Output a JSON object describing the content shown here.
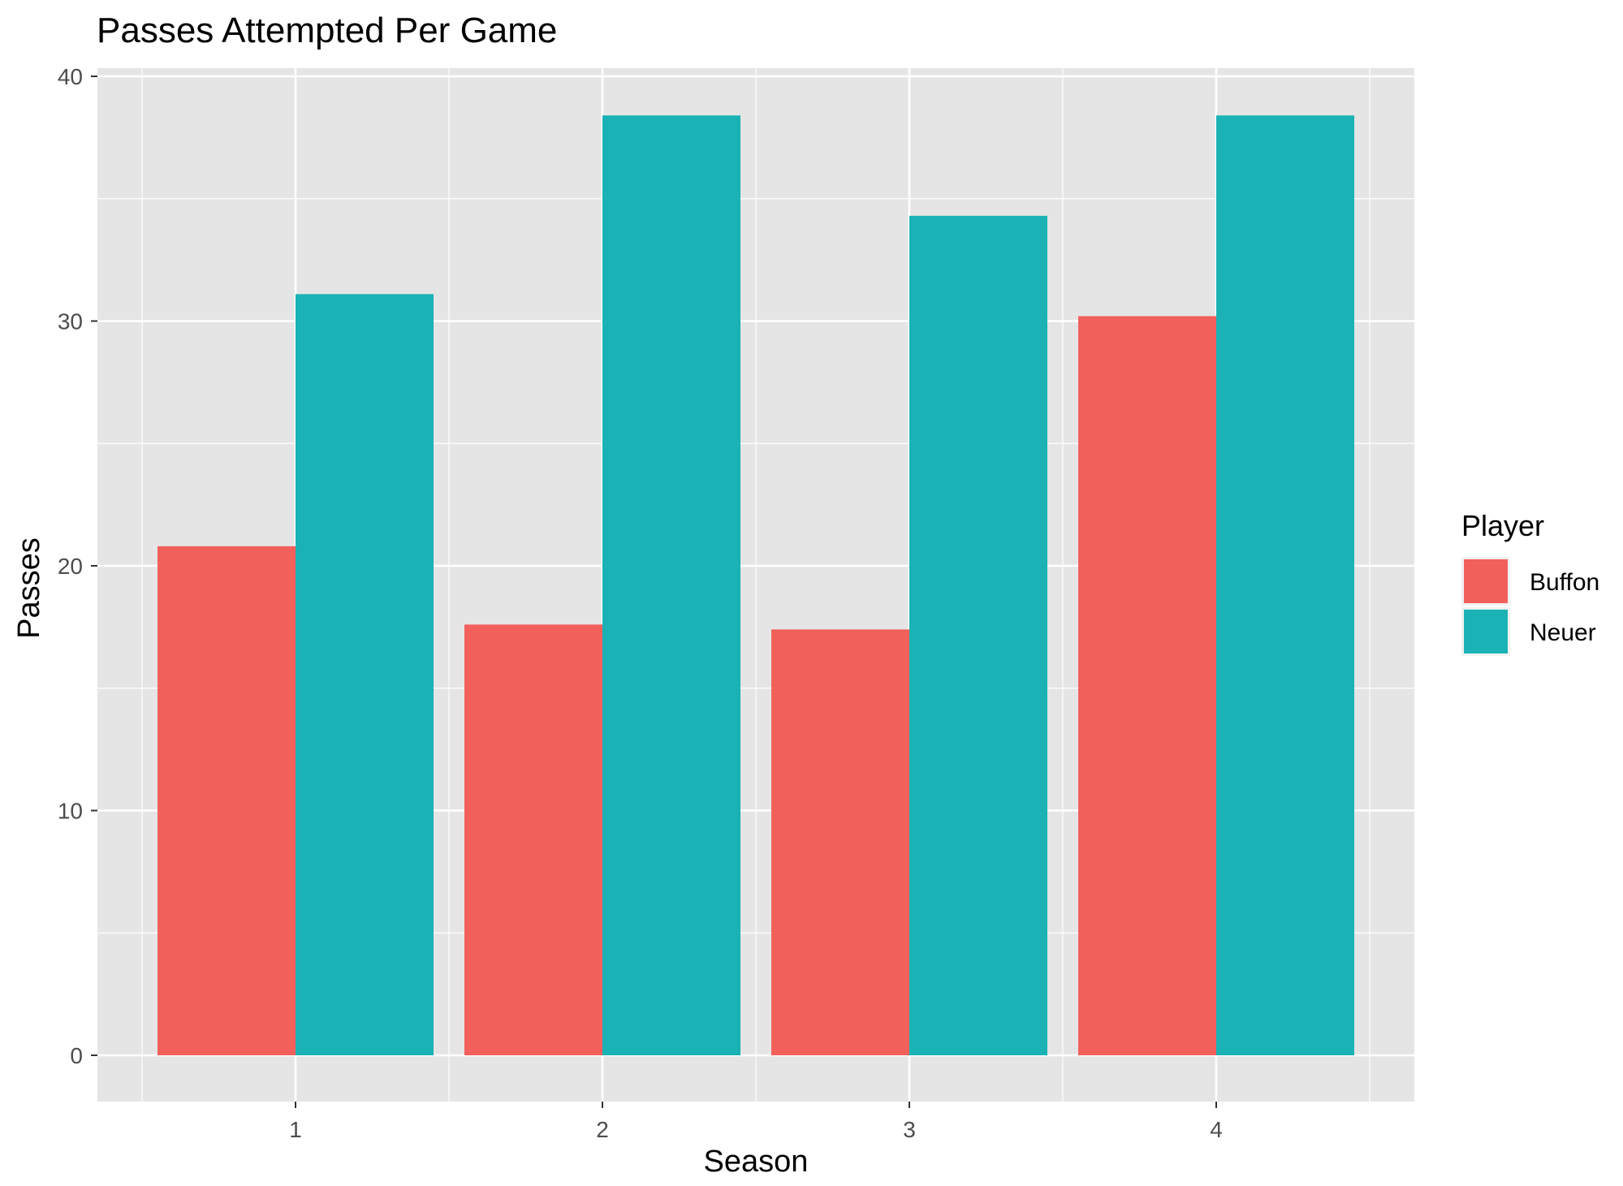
{
  "chart_data": {
    "type": "bar",
    "title": "Passes Attempted Per Game",
    "xlabel": "Season",
    "ylabel": "Passes",
    "categories": [
      "1",
      "2",
      "3",
      "4"
    ],
    "series": [
      {
        "name": "Buffon",
        "color": "#F2605C",
        "values": [
          20.8,
          17.6,
          17.4,
          30.2
        ]
      },
      {
        "name": "Neuer",
        "color": "#1AB2B5",
        "values": [
          31.1,
          38.4,
          34.3,
          38.4
        ]
      }
    ],
    "ylim": [
      0,
      41.9
    ],
    "yticks": [
      0,
      10,
      20,
      30,
      40
    ],
    "grid": true,
    "legend": {
      "title": "Player",
      "position": "right"
    },
    "colors": {
      "panel_background": "#E5E5E5",
      "grid": "#FFFFFF"
    }
  }
}
